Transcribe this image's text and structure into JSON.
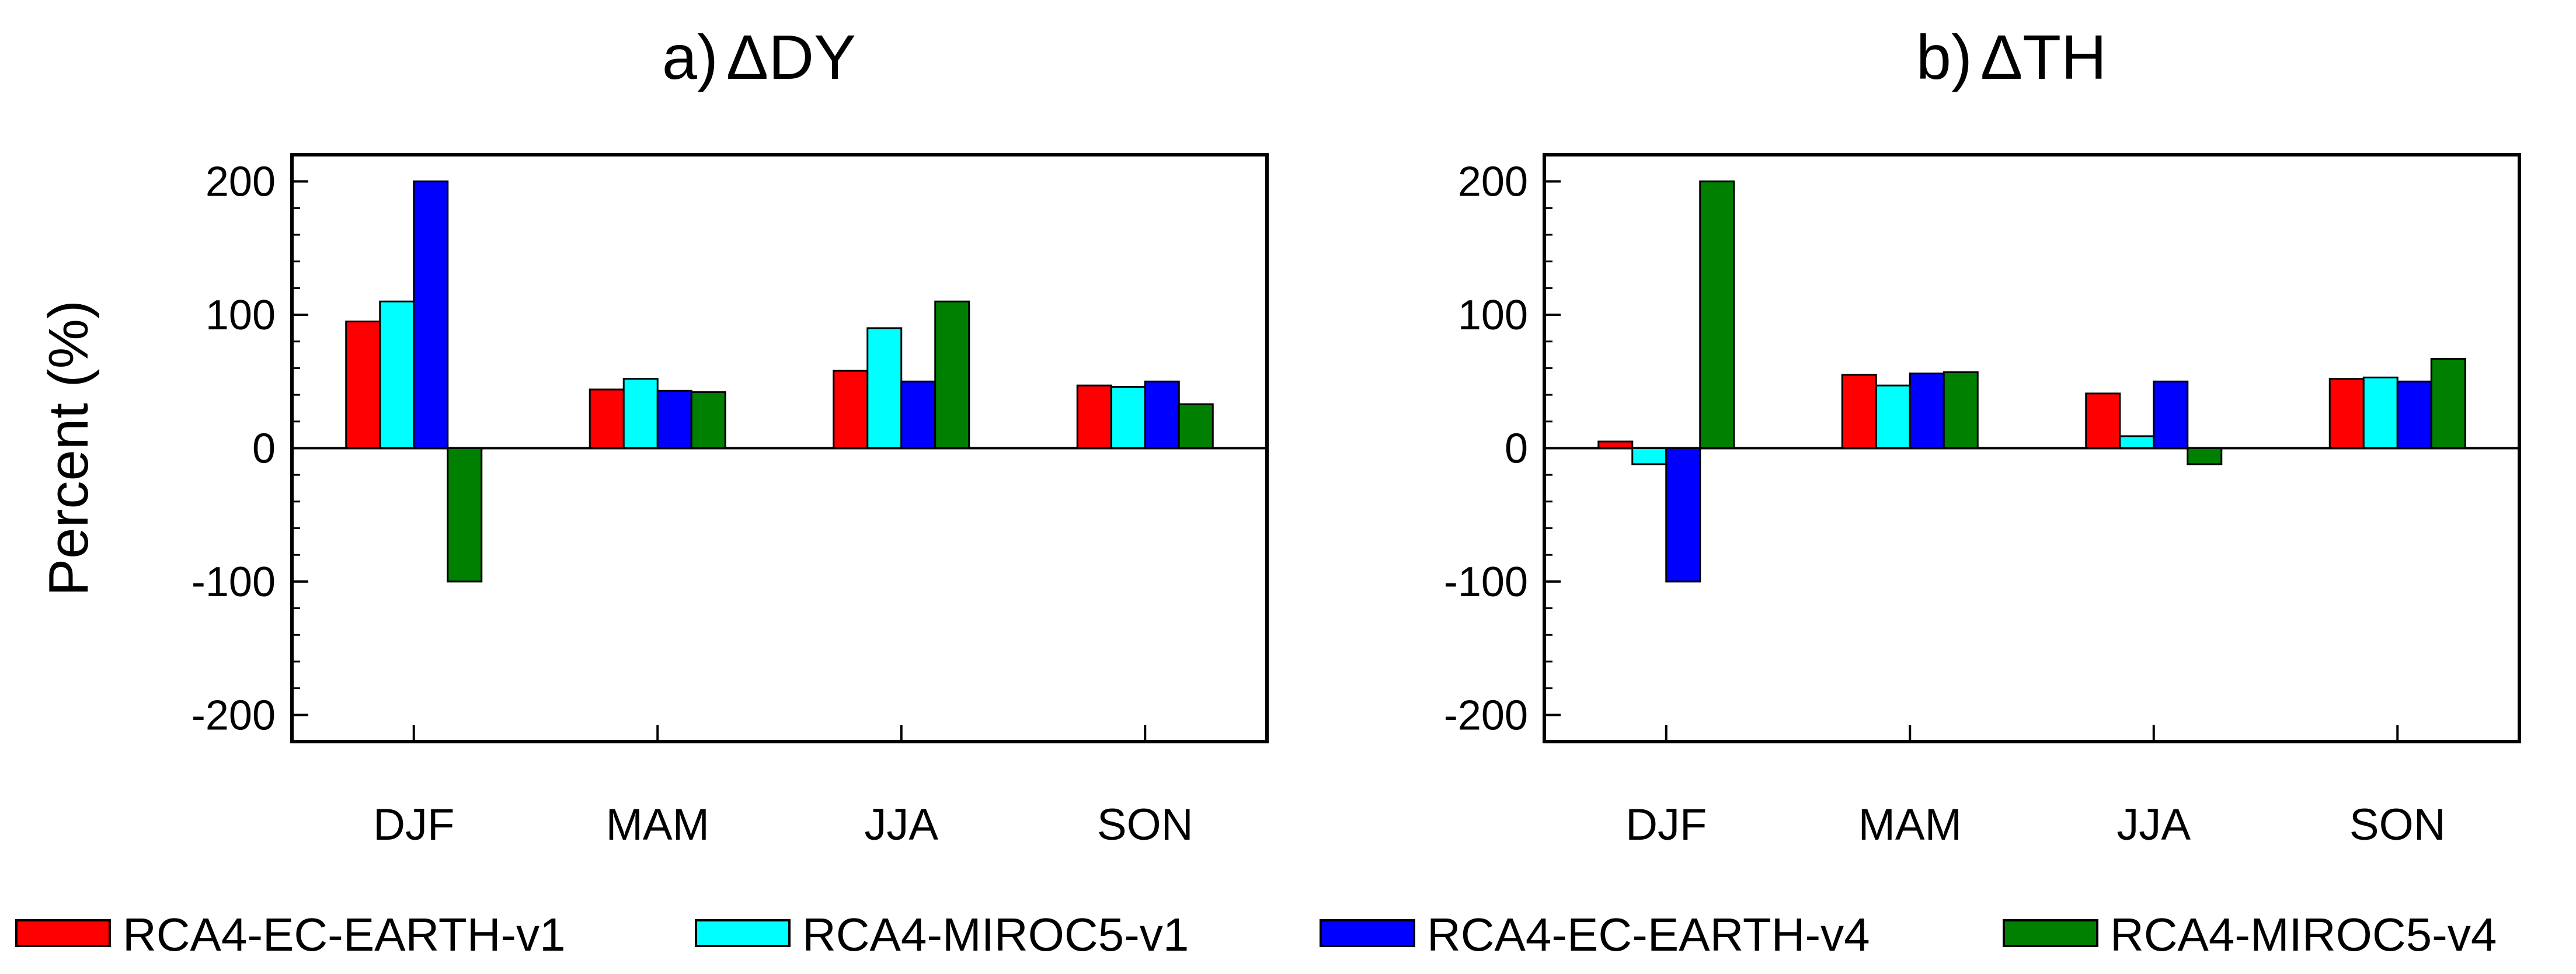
{
  "chart_data": [
    {
      "type": "bar",
      "panel": "a",
      "title_prefix": "a)",
      "title_symbol": "Δ",
      "title_text": "DY",
      "ylabel": "Percent (%)",
      "ylim": [
        -220,
        220
      ],
      "yticks": [
        -200,
        -100,
        0,
        100,
        200
      ],
      "ytick_labels": [
        "-200",
        "-100",
        "0",
        "100",
        "200"
      ],
      "categories": [
        "DJF",
        "MAM",
        "JJA",
        "SON"
      ],
      "series": [
        {
          "name": "RCA4-EC-EARTH-v1",
          "color": "#ff0000",
          "values": [
            95,
            44,
            58,
            47
          ]
        },
        {
          "name": "RCA4-MIROC5-v1",
          "color": "#00ffff",
          "values": [
            110,
            52,
            90,
            46
          ]
        },
        {
          "name": "RCA4-EC-EARTH-v4",
          "color": "#0000ff",
          "values": [
            200,
            43,
            50,
            50
          ]
        },
        {
          "name": "RCA4-MIROC5-v4",
          "color": "#008000",
          "values": [
            -100,
            42,
            110,
            33
          ]
        }
      ]
    },
    {
      "type": "bar",
      "panel": "b",
      "title_prefix": "b)",
      "title_symbol": "Δ",
      "title_text": "TH",
      "ylabel": "",
      "ylim": [
        -220,
        220
      ],
      "yticks": [
        -200,
        -100,
        0,
        100,
        200
      ],
      "ytick_labels": [
        "-200",
        "-100",
        "0",
        "100",
        "200"
      ],
      "categories": [
        "DJF",
        "MAM",
        "JJA",
        "SON"
      ],
      "series": [
        {
          "name": "RCA4-EC-EARTH-v1",
          "color": "#ff0000",
          "values": [
            5,
            55,
            41,
            52
          ]
        },
        {
          "name": "RCA4-MIROC5-v1",
          "color": "#00ffff",
          "values": [
            -12,
            47,
            9,
            53
          ]
        },
        {
          "name": "RCA4-EC-EARTH-v4",
          "color": "#0000ff",
          "values": [
            -100,
            56,
            50,
            50
          ]
        },
        {
          "name": "RCA4-MIROC5-v4",
          "color": "#008000",
          "values": [
            200,
            57,
            -12,
            67
          ]
        }
      ]
    }
  ],
  "legend": [
    {
      "label": "RCA4-EC-EARTH-v1",
      "color": "#ff0000"
    },
    {
      "label": "RCA4-MIROC5-v1",
      "color": "#00ffff"
    },
    {
      "label": "RCA4-EC-EARTH-v4",
      "color": "#0000ff"
    },
    {
      "label": "RCA4-MIROC5-v4",
      "color": "#008000"
    }
  ]
}
